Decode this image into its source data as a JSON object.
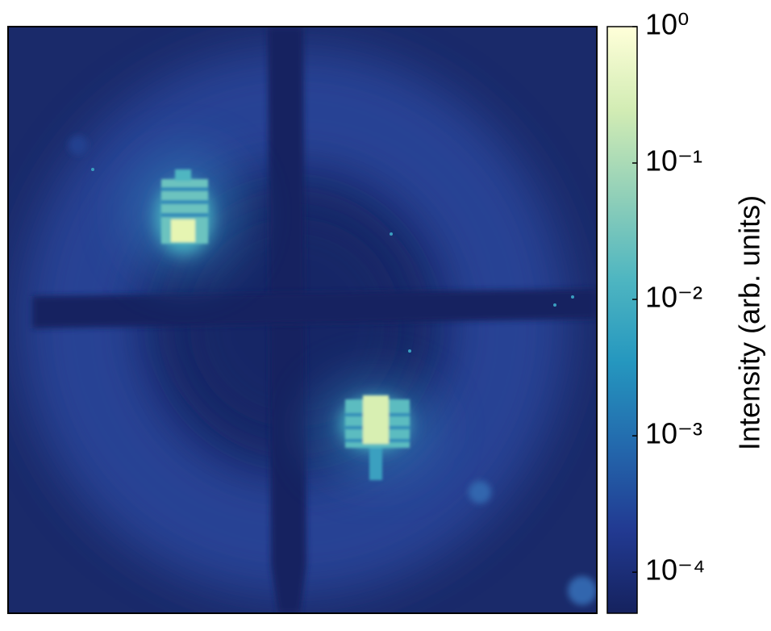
{
  "chart_data": {
    "type": "heatmap",
    "colorbar": {
      "label": "Intensity (arb. units)",
      "scale": "log",
      "lim": [
        5e-05,
        1
      ],
      "ticks": [
        {
          "value": 0.0001,
          "label": "10⁻⁴"
        },
        {
          "value": 0.001,
          "label": "10⁻³"
        },
        {
          "value": 0.01,
          "label": "10⁻²"
        },
        {
          "value": 0.1,
          "label": "10⁻¹"
        },
        {
          "value": 1,
          "label": "10⁰"
        }
      ],
      "colors": [
        "#15225e",
        "#223a92",
        "#2369ad",
        "#2597bf",
        "#4fb6c1",
        "#92d0b8",
        "#d2ecb4",
        "#ffffd9"
      ]
    }
  }
}
